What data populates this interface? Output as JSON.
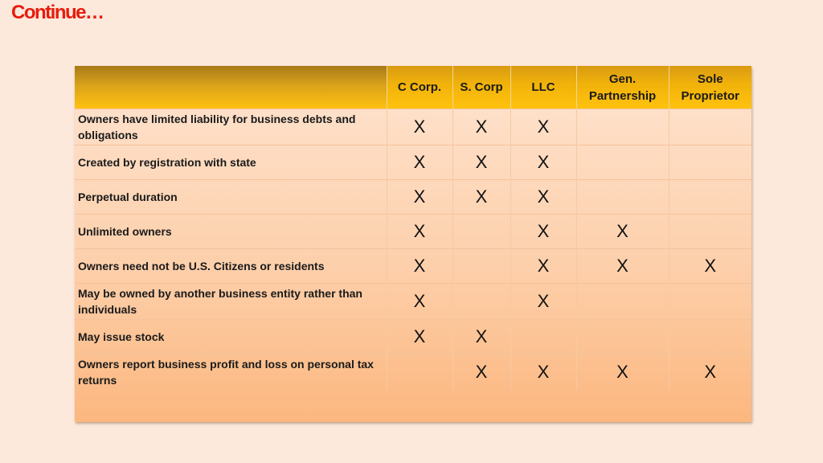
{
  "title": "Continue…",
  "table": {
    "columns": [
      "C Corp.",
      "S. Corp",
      "LLC",
      "Gen. Partnership",
      "Sole Proprietor"
    ],
    "rows": [
      {
        "feature": "Owners have limited liability for business debts and obligations",
        "marks": [
          "X",
          "X",
          "X",
          "",
          ""
        ]
      },
      {
        "feature": "Created by registration with state",
        "marks": [
          "X",
          "X",
          "X",
          "",
          ""
        ]
      },
      {
        "feature": "Perpetual duration",
        "marks": [
          "X",
          "X",
          "X",
          "",
          ""
        ]
      },
      {
        "feature": "Unlimited owners",
        "marks": [
          "X",
          "",
          "X",
          "X",
          ""
        ]
      },
      {
        "feature": "Owners need not be U.S. Citizens or residents",
        "marks": [
          "X",
          "",
          "X",
          "X",
          "X"
        ]
      },
      {
        "feature": "May be owned by another business entity rather than individuals",
        "marks": [
          "X",
          "",
          "X",
          "",
          ""
        ]
      },
      {
        "feature": "May issue stock",
        "marks": [
          "X",
          "X",
          "",
          "",
          ""
        ]
      },
      {
        "feature": "Owners report business profit and loss on personal tax returns",
        "marks": [
          "",
          "X",
          "X",
          "X",
          "X"
        ]
      }
    ]
  },
  "colors": {
    "title": "#e81c0c",
    "header_gold": "#ffc20e",
    "background": "#fde9dc"
  }
}
